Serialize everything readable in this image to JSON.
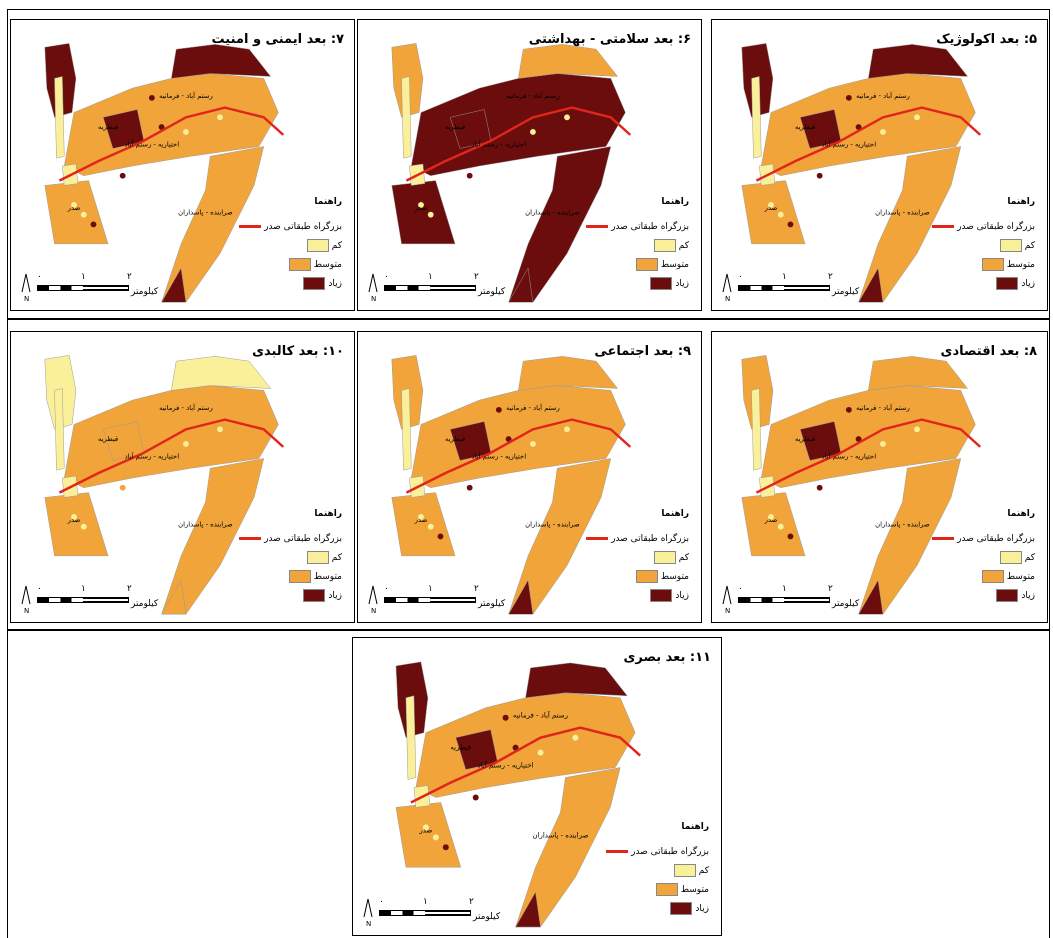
{
  "colors": {
    "low": "#fbf09a",
    "medium": "#f0a43a",
    "high": "#6b0d0d",
    "highway": "#e1251b"
  },
  "legend": {
    "title": "راهنما",
    "highway": "بزرگراه طبقاتی صدر",
    "low": "کم",
    "medium": "متوسط",
    "high": "زیاد"
  },
  "scale": {
    "ticks": [
      "۰",
      "۱",
      "۲"
    ],
    "unit": "کیلومتر",
    "north": "N"
  },
  "map_labels": {
    "rostam_farmanieh": "رستم آباد - فرمانیه",
    "ekhtiarieh_rostam": "اختیاریه - رستم آباد",
    "qeytarieh": "قیطریه",
    "sadr": "صدر",
    "sarabandi": "صرابنده - پاسداران"
  },
  "panels": [
    {
      "title": "۵: بعد اکولوژیک"
    },
    {
      "title": "۶: بعد سلامتی - بهداشتی"
    },
    {
      "title": "۷: بعد ایمنی و امنیت"
    },
    {
      "title": "۸: بعد اقتصادی"
    },
    {
      "title": "۹: بعد اجتماعی"
    },
    {
      "title": "۱۰: بعد کالبدی"
    },
    {
      "title": "۱۱: بعد بصری"
    }
  ]
}
